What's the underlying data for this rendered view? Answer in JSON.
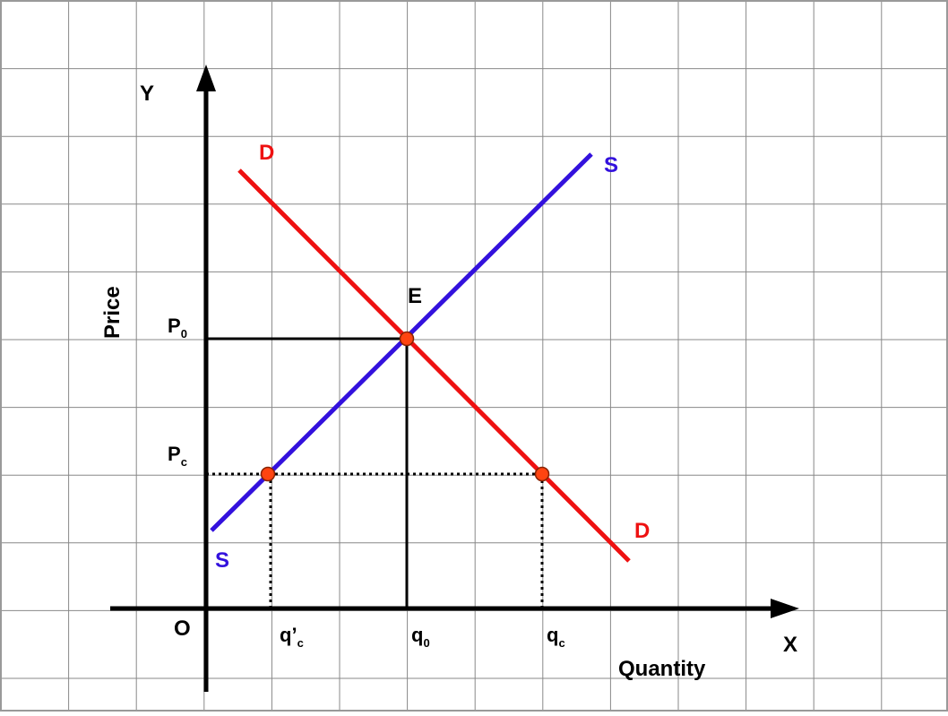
{
  "colors": {
    "grid": "#888888",
    "frame": "#999999",
    "axis": "#000000",
    "demand": "#ee1111",
    "supply": "#3311dd",
    "point_fill": "#ff4411",
    "point_stroke": "#882200",
    "text": "#000000"
  },
  "axes": {
    "y_letter": "Y",
    "x_letter": "X",
    "origin": "O",
    "y_title": "Price",
    "x_title": "Quantity"
  },
  "curves": {
    "demand_label_top": "D",
    "demand_label_bottom": "D",
    "supply_label_top": "S",
    "supply_label_bottom": "S"
  },
  "equilibrium": {
    "label": "E"
  },
  "price_labels": {
    "p0": {
      "main": "P",
      "sub": "0"
    },
    "pc": {
      "main": "P",
      "sub": "c"
    }
  },
  "quantity_labels": {
    "qc_prime": {
      "main": "q’",
      "sub": "c"
    },
    "q0": {
      "main": "q",
      "sub": "0"
    },
    "qc": {
      "main": "q",
      "sub": "c"
    }
  }
}
